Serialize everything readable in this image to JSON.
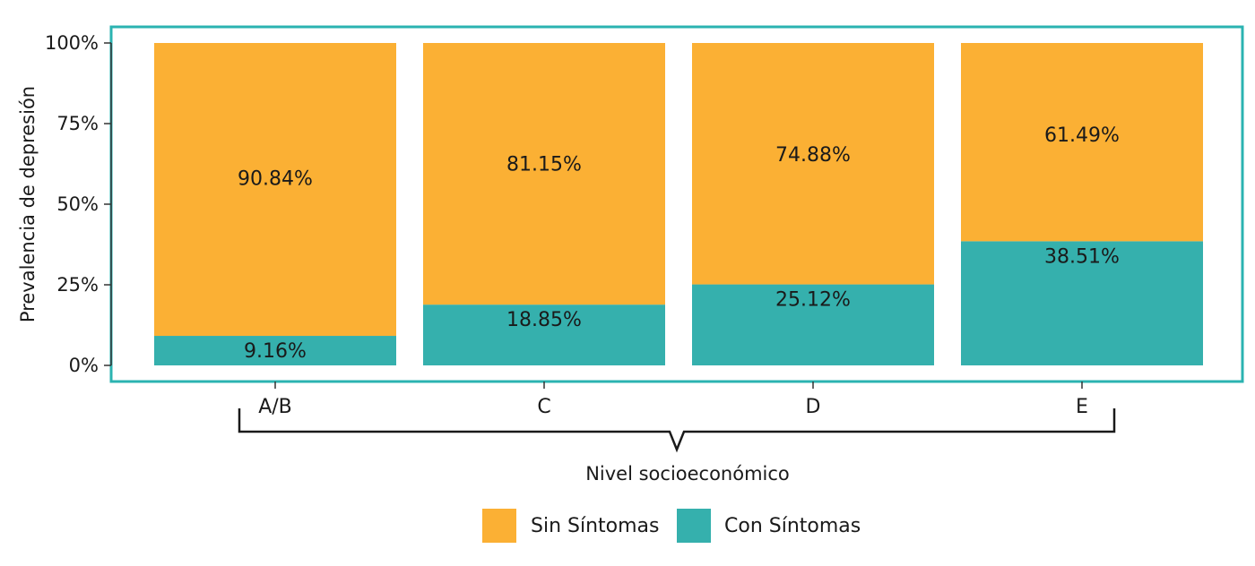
{
  "chart_data": {
    "type": "bar",
    "stacked": true,
    "categories": [
      "A/B",
      "C",
      "D",
      "E"
    ],
    "series": [
      {
        "name": "Con Síntomas",
        "values": [
          9.16,
          18.85,
          25.12,
          38.51
        ],
        "color": "#35b0ad"
      },
      {
        "name": "Sin Síntomas",
        "values": [
          90.84,
          81.15,
          74.88,
          61.49
        ],
        "color": "#fbb034"
      }
    ],
    "value_labels": [
      [
        "9.16%",
        "18.85%",
        "25.12%",
        "38.51%"
      ],
      [
        "90.84%",
        "81.15%",
        "74.88%",
        "61.49%"
      ]
    ],
    "xlabel": "Nivel socioeconómico",
    "ylabel": "Prevalencia de depresión",
    "ylim": [
      0,
      100
    ],
    "yticks": [
      "0%",
      "25%",
      "50%",
      "75%",
      "100%"
    ],
    "legend": {
      "position": "bottom-center",
      "items": [
        "Sin Síntomas",
        "Con Síntomas"
      ]
    },
    "frame_color": "#2bb3b1",
    "grid": false
  }
}
